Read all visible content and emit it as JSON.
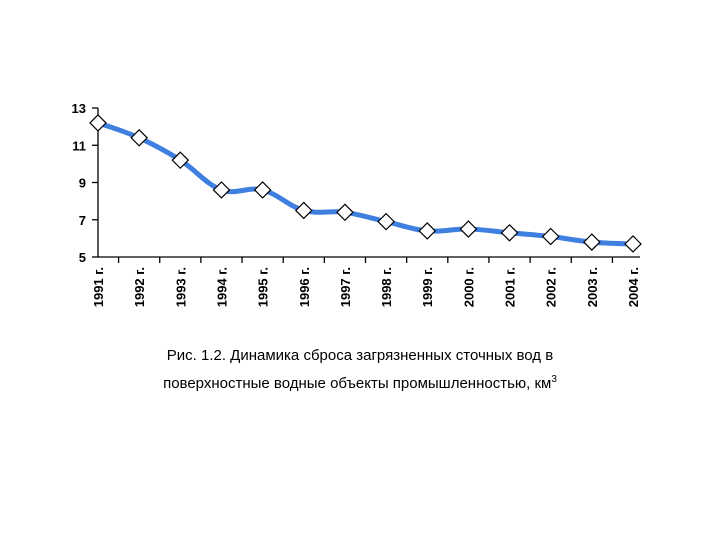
{
  "chart_data": {
    "type": "line",
    "categories": [
      "1991 г.",
      "1992 г.",
      "1993 г.",
      "1994 г.",
      "1995 г.",
      "1996 г.",
      "1997 г.",
      "1998 г.",
      "1999 г.",
      "2000 г.",
      "2001 г.",
      "2002 г.",
      "2003 г.",
      "2004 г."
    ],
    "values": [
      12.2,
      11.4,
      10.2,
      8.6,
      8.6,
      7.5,
      7.4,
      6.9,
      6.4,
      6.5,
      6.3,
      6.1,
      5.8,
      5.7
    ],
    "yticks": [
      "13",
      "11",
      "9",
      "7",
      "5"
    ],
    "ylim": [
      5,
      13
    ],
    "line_color": "#3f7fe0",
    "marker": "diamond",
    "grid": false
  },
  "caption": {
    "line1": "Рис. 1.2. Динамика сброса загрязненных сточных вод в",
    "line2": "поверхностные водные объекты промышленностью, км",
    "superscript": "3"
  }
}
